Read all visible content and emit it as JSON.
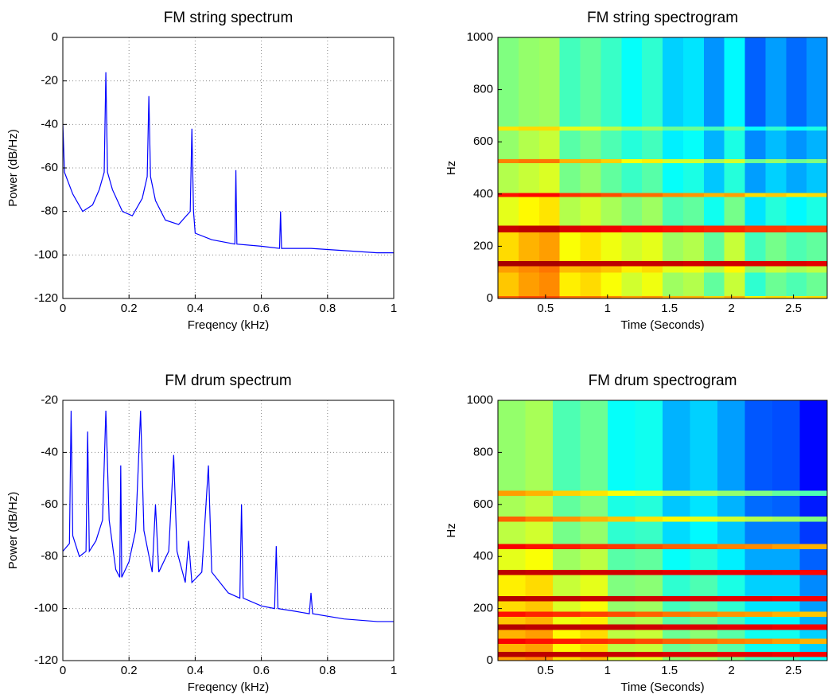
{
  "chart_data": [
    {
      "type": "line",
      "title": "FM string spectrum",
      "x_label": "Freqency (kHz)",
      "y_label": "Power (dB/Hz)",
      "color": "#0000ff",
      "grid": true,
      "x": [
        0,
        0.005,
        0.03,
        0.06,
        0.09,
        0.11,
        0.125,
        0.13,
        0.135,
        0.15,
        0.18,
        0.21,
        0.24,
        0.255,
        0.26,
        0.265,
        0.28,
        0.31,
        0.35,
        0.385,
        0.39,
        0.395,
        0.4,
        0.45,
        0.52,
        0.523,
        0.526,
        0.6,
        0.655,
        0.658,
        0.661,
        0.75,
        0.85,
        0.95,
        1
      ],
      "values": [
        -40,
        -62,
        -72,
        -80,
        -77,
        -70,
        -62,
        -16,
        -62,
        -70,
        -80,
        -82,
        -74,
        -64,
        -27,
        -64,
        -75,
        -84,
        -86,
        -80,
        -42,
        -80,
        -90,
        -93,
        -95,
        -61,
        -95,
        -96,
        -97,
        -80,
        -97,
        -97,
        -98,
        -99,
        -99
      ],
      "xlim": [
        0,
        1
      ],
      "xticks": [
        0,
        0.2,
        0.4,
        0.6,
        0.8,
        1
      ],
      "ylim": [
        -120,
        0
      ],
      "yticks": [
        -120,
        -100,
        -80,
        -60,
        -40,
        -20,
        0
      ]
    },
    {
      "type": "heatmap",
      "title": "FM string spectrogram",
      "x_label": "Time (Seconds)",
      "y_label": "Hz",
      "colormap": "jet",
      "clim": [
        0,
        1
      ],
      "grid": false,
      "x": [
        0.116,
        0.282,
        0.448,
        0.614,
        0.78,
        0.946,
        1.112,
        1.278,
        1.444,
        1.61,
        1.776,
        1.942,
        2.108,
        2.274,
        2.44,
        2.606,
        2.772
      ],
      "y": [
        0,
        10,
        100,
        125,
        145,
        255,
        280,
        390,
        405,
        520,
        535,
        645,
        660,
        1000
      ],
      "values": [
        [
          0.78,
          0.8,
          0.8,
          0.76,
          0.76,
          0.74,
          0.72,
          0.73,
          0.7,
          0.7,
          0.67,
          0.7,
          0.64,
          0.66,
          0.65,
          0.66
        ],
        [
          0.68,
          0.72,
          0.74,
          0.64,
          0.66,
          0.62,
          0.58,
          0.61,
          0.53,
          0.55,
          0.47,
          0.57,
          0.42,
          0.48,
          0.45,
          0.48
        ],
        [
          0.72,
          0.74,
          0.76,
          0.69,
          0.7,
          0.68,
          0.64,
          0.66,
          0.6,
          0.61,
          0.56,
          0.63,
          0.52,
          0.57,
          0.54,
          0.56
        ],
        [
          0.96,
          0.96,
          0.96,
          0.95,
          0.94,
          0.94,
          0.93,
          0.93,
          0.93,
          0.92,
          0.92,
          0.92,
          0.91,
          0.91,
          0.91,
          0.9
        ],
        [
          0.66,
          0.7,
          0.72,
          0.62,
          0.65,
          0.61,
          0.58,
          0.6,
          0.53,
          0.55,
          0.47,
          0.57,
          0.44,
          0.49,
          0.45,
          0.47
        ],
        [
          0.93,
          0.94,
          0.94,
          0.91,
          0.9,
          0.89,
          0.87,
          0.87,
          0.86,
          0.85,
          0.84,
          0.84,
          0.82,
          0.82,
          0.81,
          0.81
        ],
        [
          0.6,
          0.63,
          0.65,
          0.55,
          0.58,
          0.54,
          0.5,
          0.53,
          0.45,
          0.47,
          0.39,
          0.49,
          0.35,
          0.41,
          0.37,
          0.4
        ],
        [
          0.86,
          0.87,
          0.87,
          0.83,
          0.82,
          0.8,
          0.77,
          0.77,
          0.74,
          0.73,
          0.7,
          0.72,
          0.66,
          0.68,
          0.65,
          0.66
        ],
        [
          0.55,
          0.57,
          0.59,
          0.49,
          0.52,
          0.47,
          0.43,
          0.46,
          0.38,
          0.4,
          0.32,
          0.41,
          0.28,
          0.33,
          0.29,
          0.32
        ],
        [
          0.75,
          0.76,
          0.76,
          0.7,
          0.7,
          0.67,
          0.62,
          0.64,
          0.58,
          0.58,
          0.54,
          0.58,
          0.48,
          0.52,
          0.48,
          0.5
        ],
        [
          0.52,
          0.55,
          0.57,
          0.46,
          0.49,
          0.45,
          0.41,
          0.44,
          0.36,
          0.38,
          0.3,
          0.4,
          0.26,
          0.31,
          0.27,
          0.3
        ],
        [
          0.65,
          0.66,
          0.66,
          0.6,
          0.6,
          0.56,
          0.52,
          0.53,
          0.48,
          0.48,
          0.44,
          0.48,
          0.38,
          0.42,
          0.38,
          0.4
        ],
        [
          0.5,
          0.52,
          0.53,
          0.44,
          0.47,
          0.43,
          0.38,
          0.42,
          0.33,
          0.35,
          0.27,
          0.37,
          0.22,
          0.28,
          0.23,
          0.27
        ]
      ],
      "xlim": [
        0.116,
        2.772
      ],
      "xticks": [
        0.5,
        1,
        1.5,
        2,
        2.5
      ],
      "ylim": [
        0,
        1000
      ],
      "yticks": [
        0,
        200,
        400,
        600,
        800,
        1000
      ]
    },
    {
      "type": "line",
      "title": "FM drum spectrum",
      "x_label": "Freqency (kHz)",
      "y_label": "Power (dB/Hz)",
      "color": "#0000ff",
      "grid": true,
      "x": [
        0,
        0.02,
        0.025,
        0.03,
        0.05,
        0.07,
        0.075,
        0.08,
        0.1,
        0.12,
        0.13,
        0.14,
        0.16,
        0.172,
        0.175,
        0.178,
        0.2,
        0.22,
        0.235,
        0.245,
        0.27,
        0.28,
        0.29,
        0.32,
        0.335,
        0.345,
        0.37,
        0.38,
        0.39,
        0.42,
        0.44,
        0.45,
        0.5,
        0.535,
        0.54,
        0.545,
        0.6,
        0.64,
        0.645,
        0.65,
        0.7,
        0.745,
        0.75,
        0.755,
        0.85,
        0.95,
        1
      ],
      "values": [
        -78,
        -75,
        -24,
        -72,
        -80,
        -78,
        -32,
        -78,
        -74,
        -66,
        -24,
        -66,
        -85,
        -88,
        -45,
        -88,
        -82,
        -70,
        -24,
        -70,
        -86,
        -60,
        -86,
        -78,
        -41,
        -78,
        -90,
        -74,
        -90,
        -86,
        -45,
        -86,
        -94,
        -96,
        -60,
        -96,
        -99,
        -100,
        -76,
        -100,
        -101,
        -102,
        -94,
        -102,
        -104,
        -105,
        -105
      ],
      "xlim": [
        0,
        1
      ],
      "xticks": [
        0,
        0.2,
        0.4,
        0.6,
        0.8,
        1
      ],
      "ylim": [
        -120,
        -20
      ],
      "yticks": [
        -120,
        -100,
        -80,
        -60,
        -40,
        -20
      ]
    },
    {
      "type": "heatmap",
      "title": "FM drum spectrogram",
      "x_label": "Time (Seconds)",
      "y_label": "Hz",
      "colormap": "jet",
      "clim": [
        0,
        1
      ],
      "grid": false,
      "x": [
        0.116,
        0.337,
        0.559,
        0.78,
        1.001,
        1.223,
        1.444,
        1.665,
        1.886,
        2.108,
        2.329,
        2.55,
        2.772
      ],
      "y": [
        0,
        15,
        35,
        65,
        85,
        120,
        140,
        170,
        190,
        230,
        250,
        330,
        350,
        430,
        450,
        535,
        555,
        635,
        655,
        1000
      ],
      "values": [
        [
          0.72,
          0.74,
          0.66,
          0.69,
          0.59,
          0.6,
          0.52,
          0.55,
          0.5,
          0.44,
          0.44,
          0.38
        ],
        [
          0.95,
          0.94,
          0.94,
          0.93,
          0.93,
          0.92,
          0.91,
          0.91,
          0.9,
          0.9,
          0.89,
          0.88
        ],
        [
          0.7,
          0.72,
          0.63,
          0.66,
          0.56,
          0.57,
          0.48,
          0.51,
          0.46,
          0.39,
          0.39,
          0.33
        ],
        [
          0.88,
          0.86,
          0.85,
          0.83,
          0.82,
          0.8,
          0.78,
          0.77,
          0.75,
          0.74,
          0.72,
          0.7
        ],
        [
          0.7,
          0.72,
          0.63,
          0.66,
          0.56,
          0.57,
          0.48,
          0.51,
          0.46,
          0.39,
          0.39,
          0.33
        ],
        [
          0.95,
          0.94,
          0.94,
          0.93,
          0.93,
          0.92,
          0.91,
          0.91,
          0.9,
          0.9,
          0.89,
          0.88
        ],
        [
          0.68,
          0.7,
          0.61,
          0.64,
          0.54,
          0.55,
          0.46,
          0.49,
          0.44,
          0.37,
          0.37,
          0.3
        ],
        [
          0.86,
          0.84,
          0.83,
          0.81,
          0.8,
          0.78,
          0.76,
          0.75,
          0.73,
          0.72,
          0.7,
          0.68
        ],
        [
          0.66,
          0.68,
          0.59,
          0.62,
          0.52,
          0.53,
          0.44,
          0.47,
          0.42,
          0.35,
          0.35,
          0.28
        ],
        [
          0.95,
          0.94,
          0.94,
          0.93,
          0.93,
          0.92,
          0.91,
          0.91,
          0.9,
          0.9,
          0.89,
          0.88
        ],
        [
          0.64,
          0.66,
          0.57,
          0.6,
          0.5,
          0.51,
          0.42,
          0.45,
          0.4,
          0.33,
          0.33,
          0.26
        ],
        [
          0.94,
          0.93,
          0.93,
          0.92,
          0.92,
          0.91,
          0.9,
          0.9,
          0.89,
          0.89,
          0.88,
          0.87
        ],
        [
          0.6,
          0.62,
          0.53,
          0.56,
          0.46,
          0.47,
          0.38,
          0.41,
          0.36,
          0.29,
          0.29,
          0.22
        ],
        [
          0.88,
          0.86,
          0.85,
          0.83,
          0.82,
          0.8,
          0.78,
          0.77,
          0.75,
          0.74,
          0.72,
          0.7
        ],
        [
          0.56,
          0.58,
          0.49,
          0.52,
          0.42,
          0.43,
          0.34,
          0.37,
          0.32,
          0.25,
          0.25,
          0.18
        ],
        [
          0.78,
          0.75,
          0.73,
          0.7,
          0.68,
          0.65,
          0.63,
          0.6,
          0.58,
          0.55,
          0.53,
          0.5
        ],
        [
          0.54,
          0.56,
          0.47,
          0.5,
          0.4,
          0.41,
          0.32,
          0.35,
          0.3,
          0.23,
          0.22,
          0.15
        ],
        [
          0.72,
          0.7,
          0.67,
          0.65,
          0.62,
          0.6,
          0.57,
          0.55,
          0.52,
          0.5,
          0.47,
          0.45
        ],
        [
          0.52,
          0.54,
          0.45,
          0.48,
          0.38,
          0.39,
          0.3,
          0.33,
          0.28,
          0.21,
          0.2,
          0.13
        ]
      ],
      "xlim": [
        0.116,
        2.772
      ],
      "xticks": [
        0.5,
        1,
        1.5,
        2,
        2.5
      ],
      "ylim": [
        0,
        1000
      ],
      "yticks": [
        0,
        200,
        400,
        600,
        800,
        1000
      ]
    }
  ]
}
